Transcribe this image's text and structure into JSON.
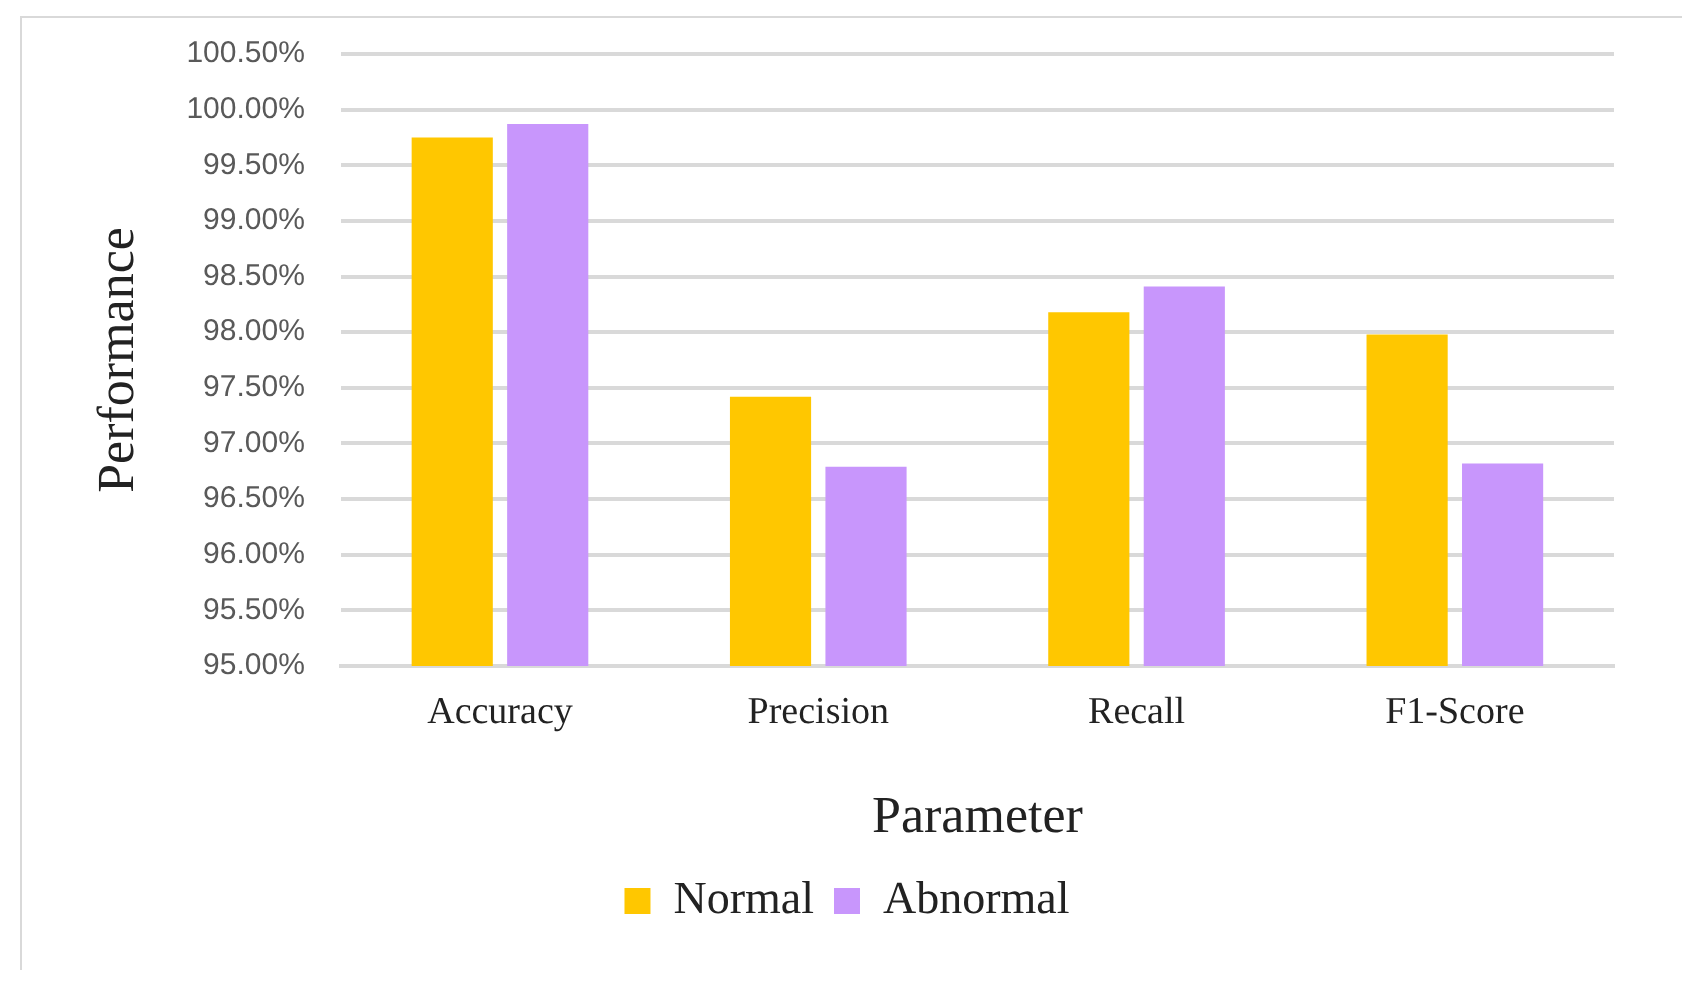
{
  "chart_data": {
    "type": "bar",
    "xlabel": "Parameter",
    "ylabel": "Performance",
    "categories": [
      "Accuracy",
      "Precision",
      "Recall",
      "F1-Score"
    ],
    "series": [
      {
        "name": "Normal",
        "color": "#ffc700",
        "values": [
          99.75,
          97.42,
          98.18,
          97.98
        ]
      },
      {
        "name": "Abnormal",
        "color": "#c896fc",
        "values": [
          99.87,
          96.79,
          98.41,
          96.82
        ]
      }
    ],
    "ylim": [
      95,
      100.5
    ],
    "yticks": [
      {
        "value": 95,
        "label": "95.00%"
      },
      {
        "value": 95.5,
        "label": "95.50%"
      },
      {
        "value": 96,
        "label": "96.00%"
      },
      {
        "value": 96.5,
        "label": "96.50%"
      },
      {
        "value": 97,
        "label": "97.00%"
      },
      {
        "value": 97.5,
        "label": "97.50%"
      },
      {
        "value": 98,
        "label": "98.00%"
      },
      {
        "value": 98.5,
        "label": "98.50%"
      },
      {
        "value": 99,
        "label": "99.00%"
      },
      {
        "value": 99.5,
        "label": "99.50%"
      },
      {
        "value": 100,
        "label": "100.00%"
      },
      {
        "value": 100.5,
        "label": "100.50%"
      }
    ],
    "grid": "y",
    "legend": "bottom"
  }
}
